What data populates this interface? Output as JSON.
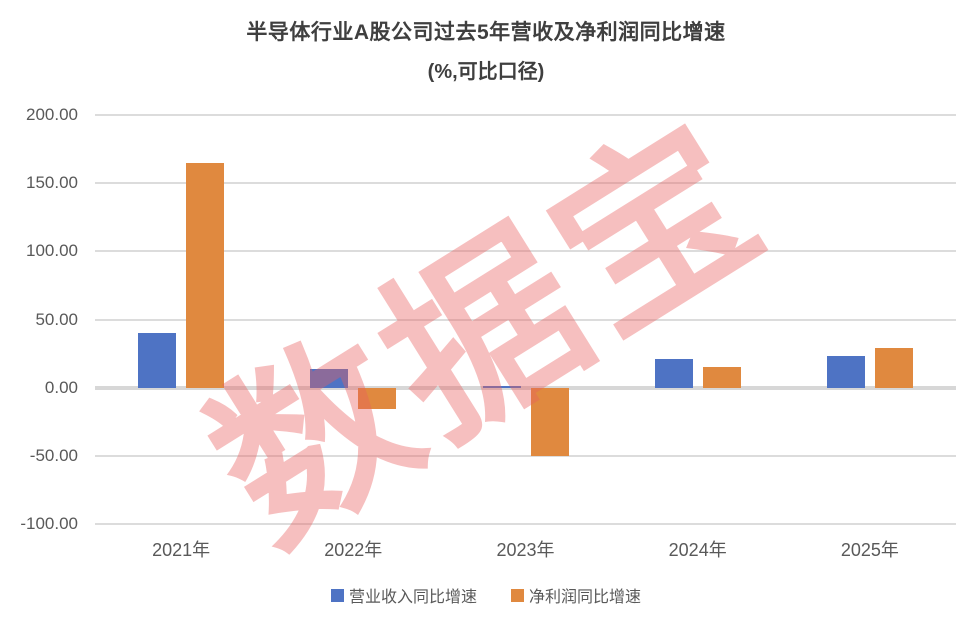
{
  "title": {
    "line1": "半导体行业A股公司过去5年营收及净利润同比增速",
    "line2": "(%,可比口径)"
  },
  "watermark": "数据宝",
  "chart_data": {
    "type": "bar",
    "categories": [
      "2021年",
      "2022年",
      "2023年",
      "2024年",
      "2025年"
    ],
    "series": [
      {
        "name": "营业收入同比增速",
        "color": "#4e73c4",
        "values": [
          40,
          14,
          1.5,
          21,
          23
        ]
      },
      {
        "name": "净利润同比增速",
        "color": "#e0893f",
        "values": [
          165,
          -16,
          -50,
          15,
          29
        ]
      }
    ],
    "ylabel": "",
    "xlabel": "",
    "ylim": [
      -100,
      200
    ],
    "ytick_step": 50,
    "ytick_labels": [
      "200.00",
      "150.00",
      "100.00",
      "50.00",
      "0.00",
      "-50.00",
      "-100.00"
    ],
    "grid": true,
    "legend_position": "bottom"
  },
  "colors": {
    "title_text": "#3f3f3f",
    "axis_text": "#595959",
    "gridline": "#dcdcdc",
    "zero_line": "#d7d7d7",
    "watermark": "rgba(232,95,95,0.40)"
  }
}
